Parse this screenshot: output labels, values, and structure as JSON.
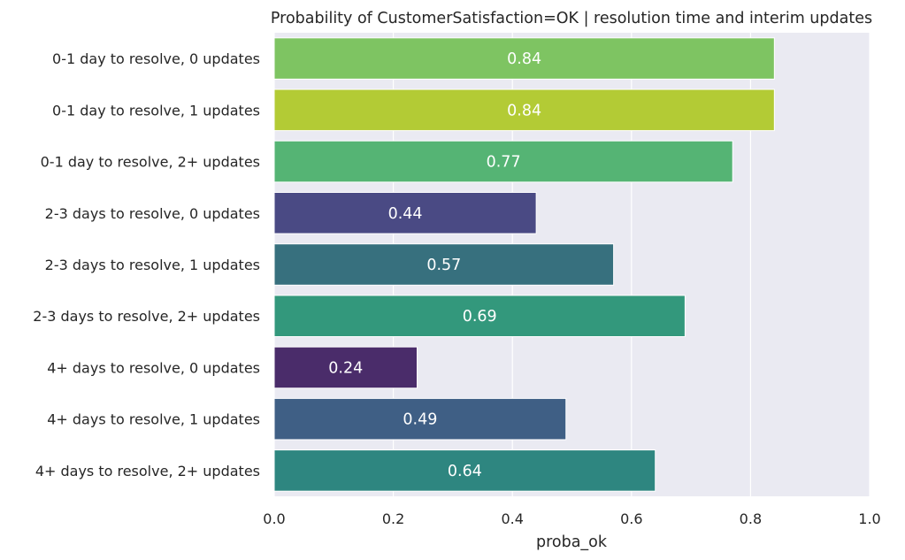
{
  "chart_data": {
    "type": "bar",
    "orientation": "horizontal",
    "title": "Probability of CustomerSatisfaction=OK | resolution time and interim updates",
    "xlabel": "proba_ok",
    "ylabel": "",
    "xlim": [
      0.0,
      1.0
    ],
    "xticks": [
      "0.0",
      "0.2",
      "0.4",
      "0.6",
      "0.8",
      "1.0"
    ],
    "grid": true,
    "categories": [
      "0-1 day to resolve, 0 updates",
      "0-1 day to resolve, 1 updates",
      "0-1 day to resolve, 2+ updates",
      "2-3 days to resolve, 0 updates",
      "2-3 days to resolve, 1 updates",
      "2-3 days to resolve, 2+ updates",
      "4+ days to resolve, 0 updates",
      "4+ days to resolve, 1 updates",
      "4+ days to resolve, 2+ updates"
    ],
    "values": [
      0.84,
      0.84,
      0.77,
      0.44,
      0.57,
      0.69,
      0.24,
      0.49,
      0.64
    ],
    "value_labels": [
      "0.84",
      "0.84",
      "0.77",
      "0.44",
      "0.57",
      "0.69",
      "0.24",
      "0.49",
      "0.64"
    ],
    "colors": [
      "#7ec462",
      "#b3cb35",
      "#55b474",
      "#4a4a84",
      "#37707e",
      "#33987c",
      "#4a2c6a",
      "#3f5f85",
      "#2e8680"
    ],
    "background_color": "#eaeaf2"
  }
}
